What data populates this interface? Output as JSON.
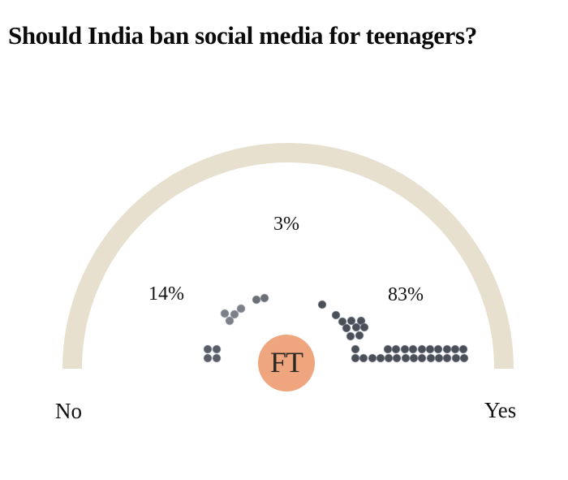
{
  "title": "Should India ban social media for teenagers?",
  "logo": {
    "text": "FT"
  },
  "labels": {
    "no": "No",
    "yes": "Yes",
    "pct_no": "14%",
    "pct_mid": "3%",
    "pct_yes": "83%"
  },
  "colors": {
    "arc": "#e8e0cf",
    "logo_bg": "#efa57e",
    "logo_text": "#2d2a24",
    "dot_dark": "#4b4f58",
    "dot_medium": "#6b6e75",
    "dot_light": "#7d8088",
    "dot_block": "#595d66",
    "dot_halo": "#aab4c4"
  },
  "chart_data": {
    "type": "gauge",
    "title": "Should India ban social media for teenagers?",
    "legend_position": "none",
    "grid": false,
    "segments": [
      {
        "label": "No",
        "percent": 14
      },
      {
        "label": "",
        "percent": 3
      },
      {
        "label": "Yes",
        "percent": 83
      }
    ],
    "dot_counts": {
      "no_side": 10,
      "yes_side": 35
    },
    "dot_radius": 5,
    "dot_groups": [
      {
        "name": "no-pair-upper",
        "side": "no",
        "color": "dot_medium",
        "points": [
          [
            316,
            369
          ],
          [
            326,
            367
          ]
        ]
      },
      {
        "name": "no-cluster-mid",
        "side": "no",
        "color": "dot_light",
        "points": [
          [
            297,
            380
          ],
          [
            277,
            386
          ],
          [
            289,
            387
          ],
          [
            283,
            395
          ]
        ]
      },
      {
        "name": "no-block-2x2",
        "side": "no",
        "color": "dot_block",
        "points": [
          [
            256,
            430
          ],
          [
            267,
            430
          ],
          [
            256,
            441
          ],
          [
            267,
            441
          ]
        ]
      },
      {
        "name": "yes-trail",
        "side": "yes",
        "color": "dot_dark",
        "points": [
          [
            397,
            375
          ],
          [
            414,
            388
          ],
          [
            422,
            396
          ],
          [
            433,
            395
          ],
          [
            445,
            395
          ],
          [
            427,
            404
          ],
          [
            439,
            403
          ],
          [
            449,
            403
          ],
          [
            432,
            414
          ],
          [
            443,
            413
          ]
        ]
      },
      {
        "name": "yes-row-upper",
        "side": "yes",
        "color": "dot_dark",
        "points": [
          [
            438,
            430
          ],
          [
            478,
            430
          ],
          [
            488,
            430
          ],
          [
            499,
            430
          ],
          [
            509,
            430
          ],
          [
            520,
            430
          ],
          [
            530,
            430
          ],
          [
            540,
            430
          ],
          [
            551,
            430
          ],
          [
            561,
            430
          ],
          [
            571,
            430
          ]
        ]
      },
      {
        "name": "yes-row-lower",
        "side": "yes",
        "color": "dot_dark",
        "points": [
          [
            438,
            441
          ],
          [
            448,
            441
          ],
          [
            459,
            441
          ],
          [
            469,
            441
          ],
          [
            479,
            441
          ],
          [
            489,
            441
          ],
          [
            500,
            441
          ],
          [
            510,
            441
          ],
          [
            520,
            441
          ],
          [
            531,
            441
          ],
          [
            541,
            441
          ],
          [
            551,
            441
          ],
          [
            562,
            441
          ],
          [
            572,
            441
          ]
        ]
      }
    ]
  }
}
